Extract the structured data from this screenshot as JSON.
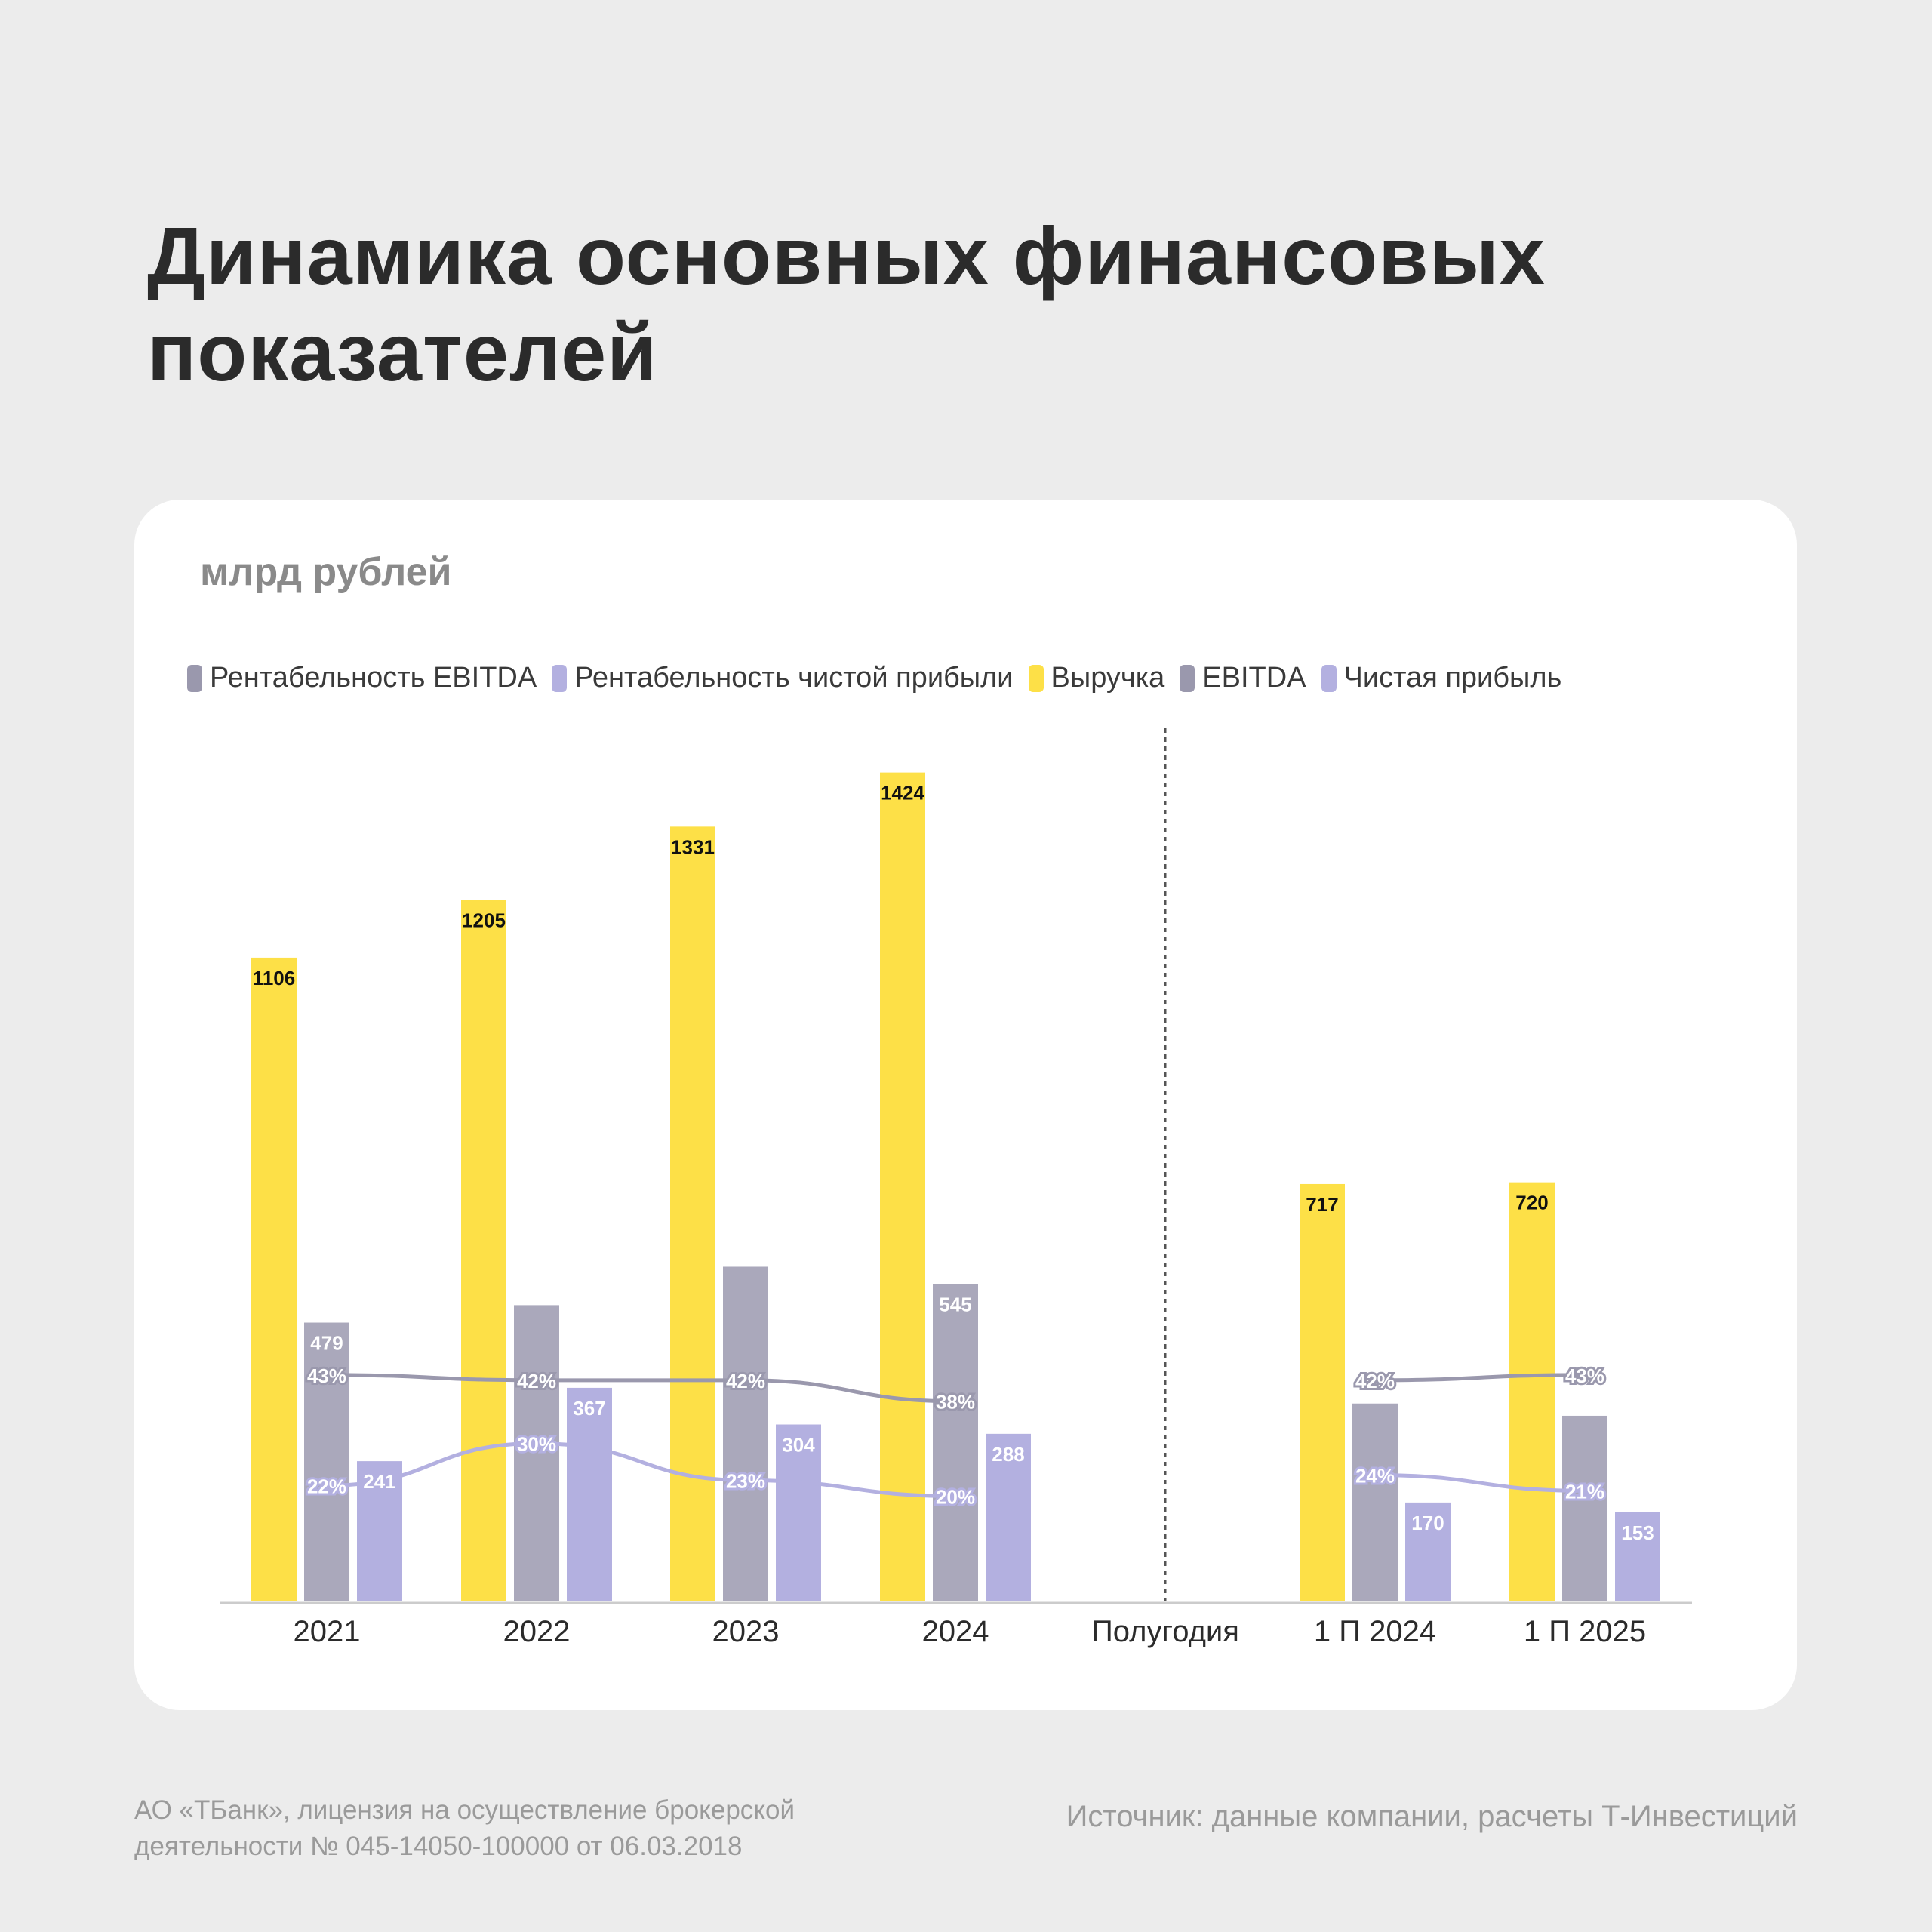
{
  "title": {
    "line1": "Динамика основных финансовых",
    "line2": "показателей"
  },
  "unit_label": "млрд рублей",
  "colors": {
    "revenue": "#fde047",
    "ebitda": "#aaa8bb",
    "net_profit": "#b3b0e0",
    "ebitda_margin_line": "#9a98ad",
    "net_margin_line": "#b3b0e0",
    "axis": "#cccccc"
  },
  "legend": [
    {
      "label": "Рентабельность EBITDA",
      "color": "#9a98ad"
    },
    {
      "label": "Рентабельность чистой прибыли",
      "color": "#b3b0e0"
    },
    {
      "label": "Выручка",
      "color": "#fde047"
    },
    {
      "label": "EBITDA",
      "color": "#9a98ad"
    },
    {
      "label": "Чистая прибыль",
      "color": "#b3b0e0"
    }
  ],
  "chart_data": {
    "type": "bar",
    "categories": [
      "2021",
      "2022",
      "2023",
      "2024",
      "Полугодия",
      "1 П 2024",
      "1 П 2025"
    ],
    "divider_category": "Полугодия",
    "series": [
      {
        "name": "Выручка",
        "values": [
          1106,
          1205,
          1331,
          1424,
          null,
          717,
          720
        ],
        "labels": [
          "1106",
          "1205",
          "1331",
          "1424",
          "",
          "717",
          "720"
        ]
      },
      {
        "name": "EBITDA",
        "values": [
          479,
          509,
          575,
          545,
          null,
          340,
          319
        ],
        "labels": [
          "479",
          "",
          "",
          "545",
          "",
          "",
          ""
        ]
      },
      {
        "name": "Чистая прибыль",
        "values": [
          241,
          367,
          304,
          288,
          null,
          170,
          153
        ],
        "labels": [
          "241",
          "367",
          "304",
          "288",
          "",
          "170",
          "153"
        ]
      }
    ],
    "lines": [
      {
        "name": "Рентабельность EBITDA",
        "values": [
          43,
          42,
          42,
          38,
          null,
          42,
          43
        ],
        "labels": [
          "43%",
          "42%",
          "42%",
          "38%",
          "",
          "42%",
          "43%"
        ]
      },
      {
        "name": "Рентабельность чистой прибыли",
        "values": [
          22,
          30,
          23,
          20,
          null,
          24,
          21
        ],
        "labels": [
          "22%",
          "30%",
          "23%",
          "20%",
          "",
          "24%",
          "21%"
        ]
      }
    ],
    "ylim": [
      0,
      1500
    ],
    "grid": false,
    "legend_position": "top-left"
  },
  "footer": {
    "license_line1": "АО «ТБанк», лицензия на осуществление брокерской",
    "license_line2": "деятельности № 045-14050-100000 от 06.03.2018",
    "source": "Источник: данные компании, расчеты Т-Инвестиций"
  }
}
